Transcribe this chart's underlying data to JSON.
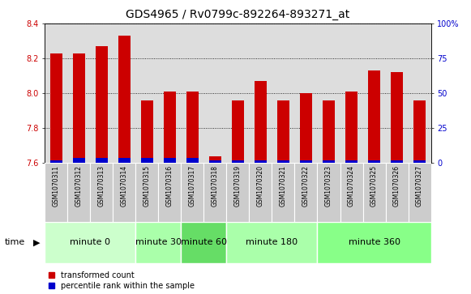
{
  "title": "GDS4965 / Rv0799c-892264-893271_at",
  "samples": [
    "GSM1070311",
    "GSM1070312",
    "GSM1070313",
    "GSM1070314",
    "GSM1070315",
    "GSM1070316",
    "GSM1070317",
    "GSM1070318",
    "GSM1070319",
    "GSM1070320",
    "GSM1070321",
    "GSM1070322",
    "GSM1070323",
    "GSM1070324",
    "GSM1070325",
    "GSM1070326",
    "GSM1070327"
  ],
  "transformed_count": [
    8.23,
    8.23,
    8.27,
    8.33,
    7.96,
    8.01,
    8.01,
    7.64,
    7.96,
    8.07,
    7.96,
    8.0,
    7.96,
    8.01,
    8.13,
    8.12,
    7.96
  ],
  "percentile_rank": [
    2,
    4,
    4,
    4,
    4,
    4,
    4,
    2,
    2,
    2,
    2,
    2,
    2,
    2,
    2,
    2,
    2
  ],
  "baseline": 7.6,
  "ylim_left": [
    7.6,
    8.4
  ],
  "ylim_right": [
    0,
    100
  ],
  "yticks_left": [
    7.6,
    7.8,
    8.0,
    8.2,
    8.4
  ],
  "yticks_right": [
    0,
    25,
    50,
    75,
    100
  ],
  "ytick_labels_right": [
    "0",
    "25",
    "50",
    "75",
    "100%"
  ],
  "groups": [
    {
      "label": "minute 0",
      "start": 0,
      "end": 4,
      "color": "#ccffcc"
    },
    {
      "label": "minute 30",
      "start": 4,
      "end": 6,
      "color": "#aaffaa"
    },
    {
      "label": "minute 60",
      "start": 6,
      "end": 8,
      "color": "#66dd66"
    },
    {
      "label": "minute 180",
      "start": 8,
      "end": 12,
      "color": "#aaffaa"
    },
    {
      "label": "minute 360",
      "start": 12,
      "end": 17,
      "color": "#88ff88"
    }
  ],
  "bar_color_red": "#cc0000",
  "bar_color_blue": "#0000cc",
  "bar_width": 0.55,
  "grid_color": "#000000",
  "tick_label_color_left": "#cc0000",
  "tick_label_color_right": "#0000cc",
  "bg_plot": "#dddddd",
  "bg_sample": "#cccccc",
  "legend_red": "transformed count",
  "legend_blue": "percentile rank within the sample",
  "time_label": "time",
  "title_fontsize": 10,
  "tick_fontsize": 7,
  "group_fontsize": 8,
  "sample_fontsize": 5.5
}
